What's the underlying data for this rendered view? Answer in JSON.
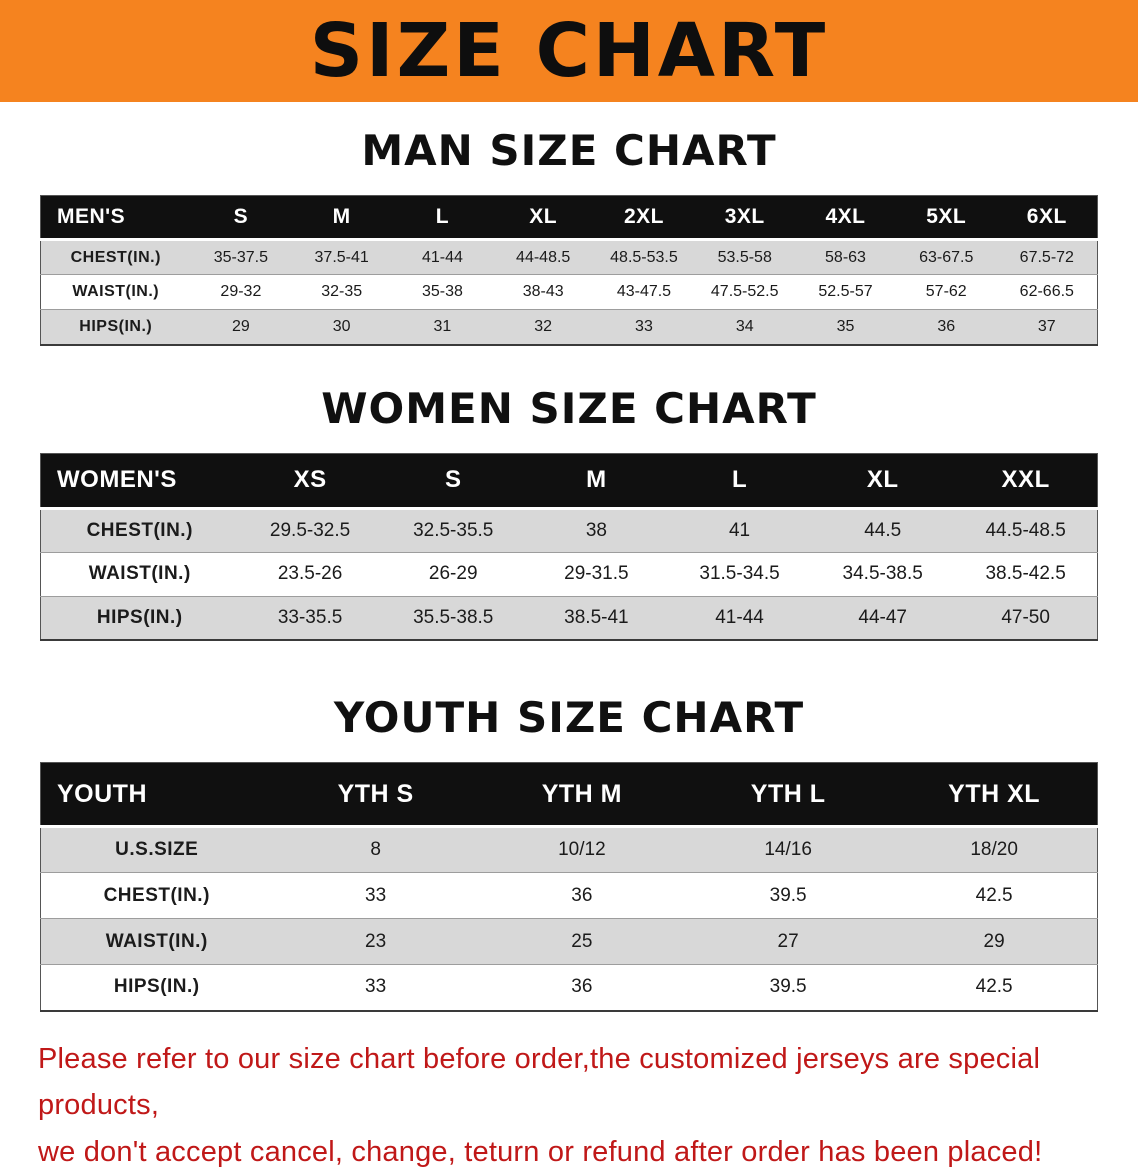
{
  "banner": {
    "title": "SIZE CHART",
    "bg_color": "#f5831f",
    "text_color": "#0e0e0e"
  },
  "sections": [
    {
      "heading": "MAN SIZE CHART",
      "table": {
        "header": [
          "MEN'S",
          "S",
          "M",
          "L",
          "XL",
          "2XL",
          "3XL",
          "4XL",
          "5XL",
          "6XL"
        ],
        "rows": [
          [
            "CHEST(IN.)",
            "35-37.5",
            "37.5-41",
            "41-44",
            "44-48.5",
            "48.5-53.5",
            "53.5-58",
            "58-63",
            "63-67.5",
            "67.5-72"
          ],
          [
            "WAIST(IN.)",
            "29-32",
            "32-35",
            "35-38",
            "38-43",
            "43-47.5",
            "47.5-52.5",
            "52.5-57",
            "57-62",
            "62-66.5"
          ],
          [
            "HIPS(IN.)",
            "29",
            "30",
            "31",
            "32",
            "33",
            "34",
            "35",
            "36",
            "37"
          ]
        ]
      }
    },
    {
      "heading": "WOMEN SIZE CHART",
      "table": {
        "header": [
          "WOMEN'S",
          "XS",
          "S",
          "M",
          "L",
          "XL",
          "XXL"
        ],
        "rows": [
          [
            "CHEST(IN.)",
            "29.5-32.5",
            "32.5-35.5",
            "38",
            "41",
            "44.5",
            "44.5-48.5"
          ],
          [
            "WAIST(IN.)",
            "23.5-26",
            "26-29",
            "29-31.5",
            "31.5-34.5",
            "34.5-38.5",
            "38.5-42.5"
          ],
          [
            "HIPS(IN.)",
            "33-35.5",
            "35.5-38.5",
            "38.5-41",
            "41-44",
            "44-47",
            "47-50"
          ]
        ]
      }
    },
    {
      "heading": "YOUTH SIZE CHART",
      "table": {
        "header": [
          "YOUTH",
          "YTH S",
          "YTH M",
          "YTH L",
          "YTH XL"
        ],
        "rows": [
          [
            "U.S.SIZE",
            "8",
            "10/12",
            "14/16",
            "18/20"
          ],
          [
            "CHEST(IN.)",
            "33",
            "36",
            "39.5",
            "42.5"
          ],
          [
            "WAIST(IN.)",
            "23",
            "25",
            "27",
            "29"
          ],
          [
            "HIPS(IN.)",
            "33",
            "36",
            "39.5",
            "42.5"
          ]
        ]
      }
    }
  ],
  "disclaimer": {
    "line1": "Please refer to our size chart before order,the customized jerseys are special products,",
    "line2": "we don't accept cancel, change, teturn or refund after order has been placed!",
    "color": "#c01818"
  }
}
